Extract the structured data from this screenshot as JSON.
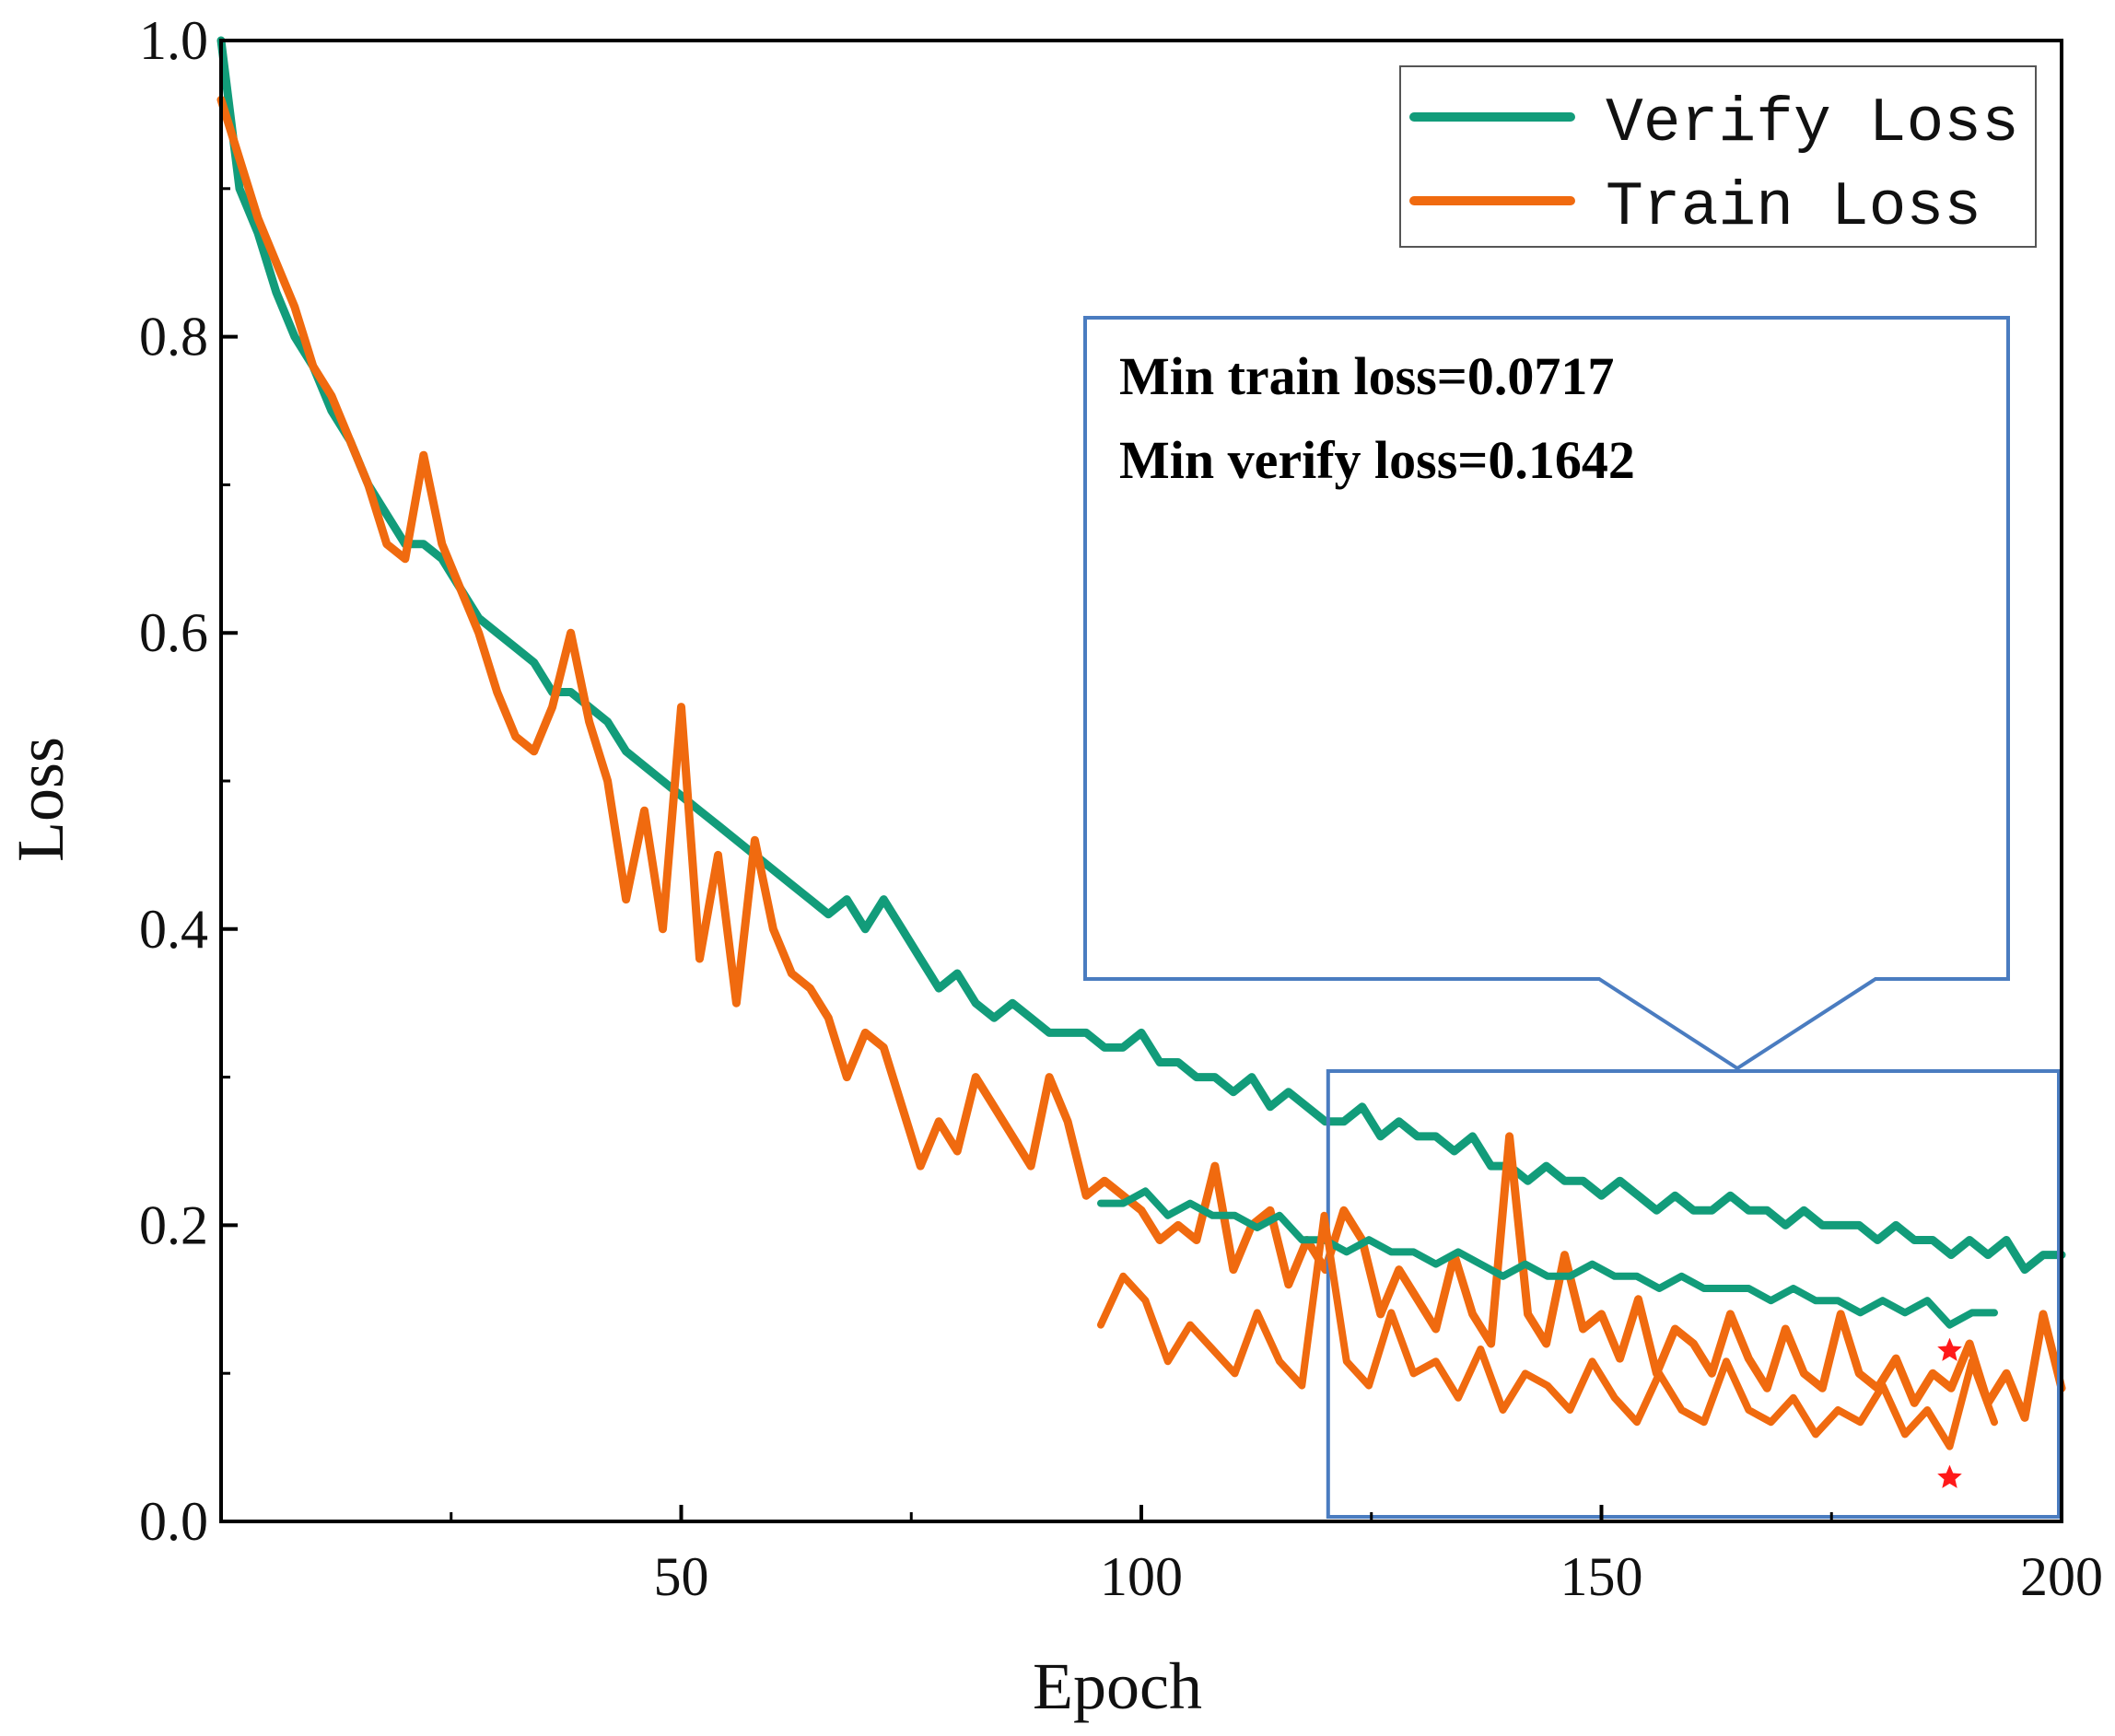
{
  "chart_data": {
    "type": "line",
    "title": "",
    "xlabel": "Epoch",
    "ylabel": "Loss",
    "xlim": [
      0,
      200
    ],
    "ylim": [
      0,
      1
    ],
    "xticks": [
      50,
      100,
      150,
      200
    ],
    "xtick_labels": [
      "50",
      "100",
      "150",
      "200"
    ],
    "yticks": [
      0,
      0.2,
      0.4,
      0.6,
      0.8,
      1.0
    ],
    "ytick_labels": [
      "0.0",
      "0.2",
      "0.4",
      "0.6",
      "0.8",
      "1.0"
    ],
    "grid": false,
    "legend_position": "top-right",
    "series": [
      {
        "name": "Verify Loss",
        "color": "#129c7a",
        "x": [
          0,
          2,
          4,
          6,
          8,
          10,
          12,
          14,
          16,
          18,
          20,
          22,
          24,
          26,
          28,
          30,
          32,
          34,
          36,
          38,
          40,
          42,
          44,
          46,
          48,
          50,
          52,
          54,
          56,
          58,
          60,
          62,
          64,
          66,
          68,
          70,
          72,
          74,
          76,
          78,
          80,
          82,
          84,
          86,
          88,
          90,
          92,
          94,
          96,
          98,
          100,
          102,
          104,
          106,
          108,
          110,
          112,
          114,
          116,
          118,
          120,
          122,
          124,
          126,
          128,
          130,
          132,
          134,
          136,
          138,
          140,
          142,
          144,
          146,
          148,
          150,
          152,
          154,
          156,
          158,
          160,
          162,
          164,
          166,
          168,
          170,
          172,
          174,
          176,
          178,
          180,
          182,
          184,
          186,
          188,
          190,
          192,
          194,
          196,
          198,
          200
        ],
        "values": [
          1.0,
          0.9,
          0.87,
          0.83,
          0.8,
          0.78,
          0.75,
          0.73,
          0.7,
          0.68,
          0.66,
          0.66,
          0.65,
          0.63,
          0.61,
          0.6,
          0.59,
          0.58,
          0.56,
          0.56,
          0.55,
          0.54,
          0.52,
          0.51,
          0.5,
          0.49,
          0.48,
          0.47,
          0.46,
          0.45,
          0.44,
          0.43,
          0.42,
          0.41,
          0.42,
          0.4,
          0.42,
          0.4,
          0.38,
          0.36,
          0.37,
          0.35,
          0.34,
          0.35,
          0.34,
          0.33,
          0.33,
          0.33,
          0.32,
          0.32,
          0.33,
          0.31,
          0.31,
          0.3,
          0.3,
          0.29,
          0.3,
          0.28,
          0.29,
          0.28,
          0.27,
          0.27,
          0.28,
          0.26,
          0.27,
          0.26,
          0.26,
          0.25,
          0.26,
          0.24,
          0.24,
          0.23,
          0.24,
          0.23,
          0.23,
          0.22,
          0.23,
          0.22,
          0.21,
          0.22,
          0.21,
          0.21,
          0.22,
          0.21,
          0.21,
          0.2,
          0.21,
          0.2,
          0.2,
          0.2,
          0.19,
          0.2,
          0.19,
          0.19,
          0.18,
          0.19,
          0.18,
          0.19,
          0.17,
          0.18,
          0.18
        ]
      },
      {
        "name": "Train Loss",
        "color": "#f06a0f",
        "x": [
          0,
          2,
          4,
          6,
          8,
          10,
          12,
          14,
          16,
          18,
          20,
          22,
          24,
          26,
          28,
          30,
          32,
          34,
          36,
          38,
          40,
          42,
          44,
          46,
          48,
          50,
          52,
          54,
          56,
          58,
          60,
          62,
          64,
          66,
          68,
          70,
          72,
          74,
          76,
          78,
          80,
          82,
          84,
          86,
          88,
          90,
          92,
          94,
          96,
          98,
          100,
          102,
          104,
          106,
          108,
          110,
          112,
          114,
          116,
          118,
          120,
          122,
          124,
          126,
          128,
          130,
          132,
          134,
          136,
          138,
          140,
          142,
          144,
          146,
          148,
          150,
          152,
          154,
          156,
          158,
          160,
          162,
          164,
          166,
          168,
          170,
          172,
          174,
          176,
          178,
          180,
          182,
          184,
          186,
          188,
          190,
          192,
          194,
          196,
          198,
          200
        ],
        "values": [
          0.96,
          0.92,
          0.88,
          0.85,
          0.82,
          0.78,
          0.76,
          0.73,
          0.7,
          0.66,
          0.65,
          0.72,
          0.66,
          0.63,
          0.6,
          0.56,
          0.53,
          0.52,
          0.55,
          0.6,
          0.54,
          0.5,
          0.42,
          0.48,
          0.4,
          0.55,
          0.38,
          0.45,
          0.35,
          0.46,
          0.4,
          0.37,
          0.36,
          0.34,
          0.3,
          0.33,
          0.32,
          0.28,
          0.24,
          0.27,
          0.25,
          0.3,
          0.28,
          0.26,
          0.24,
          0.3,
          0.27,
          0.22,
          0.23,
          0.22,
          0.21,
          0.19,
          0.2,
          0.19,
          0.24,
          0.17,
          0.2,
          0.21,
          0.16,
          0.19,
          0.17,
          0.21,
          0.19,
          0.14,
          0.17,
          0.15,
          0.13,
          0.18,
          0.14,
          0.12,
          0.26,
          0.14,
          0.12,
          0.18,
          0.13,
          0.14,
          0.11,
          0.15,
          0.1,
          0.13,
          0.12,
          0.1,
          0.14,
          0.11,
          0.09,
          0.13,
          0.1,
          0.09,
          0.14,
          0.1,
          0.09,
          0.11,
          0.08,
          0.1,
          0.09,
          0.12,
          0.08,
          0.1,
          0.07,
          0.14,
          0.09
        ]
      }
    ],
    "zoom_inset": {
      "source_x_range": [
        120,
        200
      ],
      "annotations": [
        "Min train loss=0.0717",
        "Min verify loss=0.1642"
      ],
      "marker_color": "#ff1a1a"
    }
  }
}
